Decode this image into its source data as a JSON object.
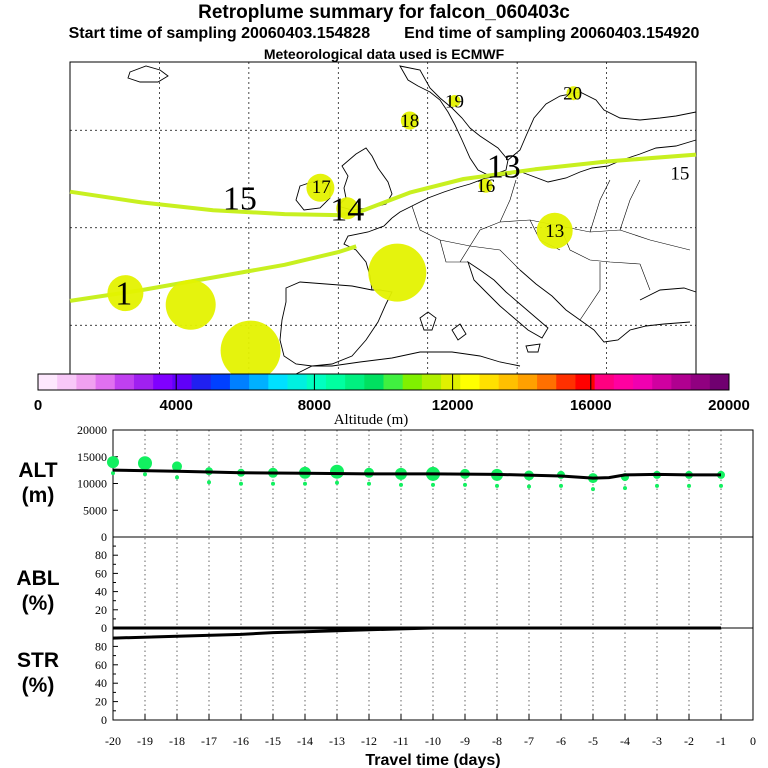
{
  "titles": {
    "main": "Retroplume summary for falcon_060403c",
    "start": "Start time of sampling 20060403.154828",
    "end": "End time of sampling 20060403.154920",
    "met": "Meteorological data used is ECMWF"
  },
  "map_labels": [
    {
      "text": "15",
      "lon": -11.0,
      "lat": 53.0,
      "size": "lg"
    },
    {
      "text": "14",
      "lon": 1.0,
      "lat": 51.9,
      "size": "lg"
    },
    {
      "text": "13",
      "lon": 18.5,
      "lat": 56.3,
      "size": "lg"
    },
    {
      "text": "1",
      "lon": -24.0,
      "lat": 43.3,
      "size": "lg"
    },
    {
      "text": "17",
      "lon": -1.9,
      "lat": 54.2,
      "size": "md"
    },
    {
      "text": "18",
      "lon": 8.0,
      "lat": 61.0,
      "size": "md"
    },
    {
      "text": "19",
      "lon": 13.0,
      "lat": 63.0,
      "size": "md"
    },
    {
      "text": "20",
      "lon": 26.2,
      "lat": 63.8,
      "size": "md"
    },
    {
      "text": "16",
      "lon": 16.5,
      "lat": 54.3,
      "size": "md"
    },
    {
      "text": "15",
      "lon": 38.2,
      "lat": 55.6,
      "size": "md"
    },
    {
      "text": "13",
      "lon": 24.2,
      "lat": 49.7,
      "size": "md"
    }
  ],
  "map_circles": [
    {
      "label": "1",
      "lon": -23.8,
      "lat": 43.3,
      "r": 18
    },
    {
      "label": "15",
      "lon": -16.5,
      "lat": 42.1,
      "r": 25
    },
    {
      "label": "14",
      "lon": -9.8,
      "lat": 37.4,
      "r": 30
    },
    {
      "label": "13",
      "lon": 6.6,
      "lat": 45.4,
      "r": 29
    },
    {
      "label": "17",
      "lon": -2.0,
      "lat": 54.1,
      "r": 14
    },
    {
      "label": "14",
      "lon": 1.0,
      "lat": 52.0,
      "r": 11
    },
    {
      "label": "18",
      "lon": 8.0,
      "lat": 61.0,
      "r": 9
    },
    {
      "label": "13",
      "lon": 24.2,
      "lat": 49.7,
      "r": 18
    },
    {
      "label": "16",
      "lon": 16.5,
      "lat": 54.3,
      "r": 7
    },
    {
      "label": "20",
      "lon": 26.3,
      "lat": 63.8,
      "r": 7
    },
    {
      "label": "19",
      "lon": 13.0,
      "lat": 63.0,
      "r": 6
    }
  ],
  "colorbar": {
    "ticks": [
      "0",
      "4000",
      "8000",
      "12000",
      "16000",
      "20000"
    ],
    "label": "Altitude (m)",
    "colors": [
      "#fde8fd",
      "#f8c8f8",
      "#f0a0f0",
      "#e070f0",
      "#c040f0",
      "#a020f0",
      "#8000ff",
      "#6000f8",
      "#2020f0",
      "#0040ff",
      "#0080ff",
      "#00b0ff",
      "#00e0ff",
      "#00f0e0",
      "#00ffc0",
      "#00ffa0",
      "#00f080",
      "#00e060",
      "#40f040",
      "#80f000",
      "#b0f000",
      "#e0f000",
      "#ffff00",
      "#ffe000",
      "#ffc000",
      "#ffa000",
      "#ff7000",
      "#ff3000",
      "#ff0000",
      "#ff0080",
      "#ff00a0",
      "#f000b0",
      "#d000a0",
      "#b00090",
      "#900080",
      "#700070"
    ]
  },
  "panels": {
    "alt": {
      "label1": "ALT",
      "label2": "(m)",
      "ticks": [
        "20000",
        "15000",
        "10000",
        "5000",
        "0"
      ]
    },
    "abl": {
      "label1": "ABL",
      "label2": "(%)",
      "ticks": [
        "80",
        "60",
        "40",
        "20",
        "0"
      ]
    },
    "str": {
      "label1": "STR",
      "label2": "(%)",
      "ticks": [
        "80",
        "60",
        "40",
        "20",
        "0"
      ]
    },
    "xlabel": "Travel time (days)",
    "xticks": [
      "-20",
      "-19",
      "-18",
      "-17",
      "-16",
      "-15",
      "-14",
      "-13",
      "-12",
      "-11",
      "-10",
      "-9",
      "-8",
      "-7",
      "-6",
      "-5",
      "-4",
      "-3",
      "-2",
      "-1",
      "0"
    ]
  },
  "chart_data": {
    "type": "line",
    "title": "Retroplume summary for falcon_060403c",
    "xlabel": "Travel time (days)",
    "xlim": [
      -20,
      0
    ],
    "series": [
      {
        "name": "ALT (m)",
        "ylim": [
          0,
          20000
        ],
        "x": [
          -20,
          -18,
          -16,
          -14,
          -12,
          -10,
          -8,
          -6,
          -5,
          -4.5,
          -4,
          -3,
          -2,
          -1
        ],
        "y": [
          12500,
          12300,
          12000,
          11900,
          11800,
          11800,
          11700,
          11400,
          11000,
          11100,
          11600,
          11700,
          11600,
          11600
        ]
      },
      {
        "name": "ALT dots (m)",
        "x": [
          -20,
          -19,
          -18,
          -17,
          -16,
          -15,
          -14,
          -13,
          -12,
          -11,
          -10,
          -9,
          -8,
          -7,
          -6,
          -5,
          -4,
          -3,
          -2,
          -1
        ],
        "y": [
          14000,
          13800,
          13200,
          12300,
          12000,
          12000,
          12000,
          12200,
          12000,
          11800,
          11800,
          11800,
          11600,
          11500,
          11600,
          11000,
          11200,
          11600,
          11600,
          11600
        ]
      },
      {
        "name": "ABL (%)",
        "ylim": [
          0,
          100
        ],
        "x": [
          -20,
          -1
        ],
        "y": [
          0,
          0
        ]
      },
      {
        "name": "STR (%)",
        "ylim": [
          0,
          100
        ],
        "x": [
          -20,
          -18,
          -16,
          -15,
          -14,
          -13,
          -12,
          -11,
          -10,
          -8,
          -6,
          -4,
          -1
        ],
        "y": [
          89,
          91,
          93,
          95,
          96,
          97,
          98,
          99,
          100,
          100,
          100,
          100,
          100
        ]
      }
    ]
  }
}
